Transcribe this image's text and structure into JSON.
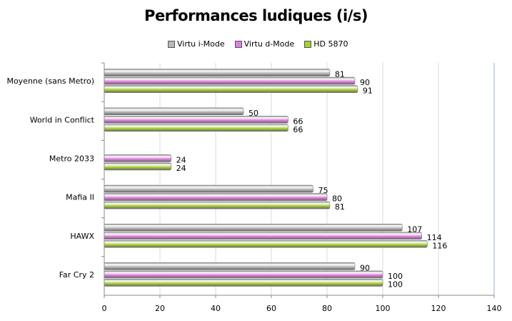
{
  "chart_data": {
    "type": "bar",
    "orientation": "horizontal",
    "title": "Performances ludiques (i/s)",
    "categories": [
      "Moyenne (sans Metro)",
      "World in Conflict",
      "Metro 2033",
      "Mafia II",
      "HAWX",
      "Far Cry 2"
    ],
    "series": [
      {
        "name": "Virtu i-Mode",
        "color": "#b8b8b8",
        "values": [
          81,
          50,
          null,
          75,
          107,
          90
        ]
      },
      {
        "name": "Virtu d-Mode",
        "color": "#e07ee0",
        "values": [
          90,
          66,
          24,
          80,
          114,
          100
        ]
      },
      {
        "name": "HD 5870",
        "color": "#a8d030",
        "values": [
          91,
          66,
          24,
          81,
          116,
          100
        ]
      }
    ],
    "xlim": [
      0,
      140
    ],
    "xticks": [
      0,
      20,
      40,
      60,
      80,
      100,
      120,
      140
    ],
    "grid": true,
    "legend_position": "top"
  }
}
